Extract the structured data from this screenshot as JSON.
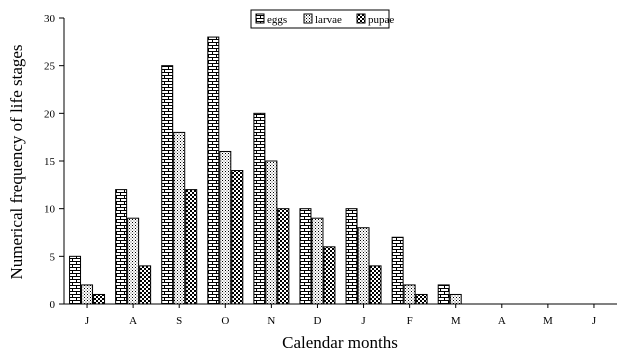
{
  "chart_data": {
    "type": "bar",
    "title": "",
    "xlabel": "Calendar months",
    "ylabel": "Numerical frequency of life stages",
    "ylim": [
      0,
      30
    ],
    "yticks": [
      0,
      5,
      10,
      15,
      20,
      25,
      30
    ],
    "grid": false,
    "legend_position": "top-center",
    "categories": [
      "J",
      "A",
      "S",
      "O",
      "N",
      "D",
      "J",
      "F",
      "M",
      "A",
      "M",
      "J"
    ],
    "series": [
      {
        "name": "eggs",
        "pattern": "bricks",
        "values": [
          5,
          12,
          25,
          28,
          20,
          10,
          10,
          7,
          2,
          0,
          0,
          0
        ]
      },
      {
        "name": "larvae",
        "pattern": "dots",
        "values": [
          2,
          9,
          18,
          16,
          15,
          9,
          8,
          2,
          1,
          0,
          0,
          0
        ]
      },
      {
        "name": "pupae",
        "pattern": "checks",
        "values": [
          1,
          4,
          12,
          14,
          10,
          6,
          4,
          1,
          0,
          0,
          0,
          0
        ]
      }
    ]
  }
}
